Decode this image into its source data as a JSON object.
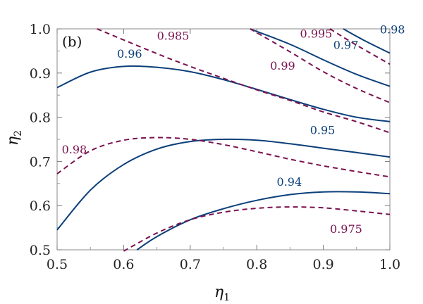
{
  "chart_data": {
    "type": "line",
    "panel_label": "(b)",
    "xlabel": "η",
    "xlabel_sub": "1",
    "ylabel": "η",
    "ylabel_sub": "2",
    "xlim": [
      0.5,
      1.0
    ],
    "ylim": [
      0.5,
      1.0
    ],
    "xticks": [
      "0.5",
      "0.6",
      "0.7",
      "0.8",
      "0.9",
      "1.0"
    ],
    "yticks": [
      "0.5",
      "0.6",
      "0.7",
      "0.8",
      "0.9",
      "1.0"
    ],
    "colors": {
      "solid": "#0b3f7a",
      "dashed": "#7a1150"
    },
    "series": [
      {
        "name": "0.96",
        "style": "solid",
        "x": [
          0.5,
          0.55,
          0.6,
          0.65,
          0.7,
          0.75,
          0.8,
          0.85,
          0.9,
          0.95,
          1.0
        ],
        "y": [
          0.867,
          0.902,
          0.915,
          0.913,
          0.903,
          0.885,
          0.863,
          0.84,
          0.818,
          0.8,
          0.79
        ],
        "label": "0.96",
        "label_at": [
          0.59,
          0.935
        ]
      },
      {
        "name": "0.97",
        "style": "solid",
        "x": [
          0.79,
          0.85,
          0.9,
          0.95,
          1.0
        ],
        "y": [
          1.0,
          0.965,
          0.93,
          0.897,
          0.87
        ],
        "label": "0.97",
        "label_at": [
          0.915,
          0.955
        ]
      },
      {
        "name": "0.98",
        "style": "solid",
        "x": [
          0.93,
          0.96,
          1.0
        ],
        "y": [
          1.0,
          0.975,
          0.945
        ],
        "label": "0.98",
        "label_at": [
          0.985,
          0.99
        ]
      },
      {
        "name": "0.95",
        "style": "solid",
        "x": [
          0.5,
          0.55,
          0.6,
          0.65,
          0.7,
          0.75,
          0.8,
          0.85,
          0.9,
          0.95,
          1.0
        ],
        "y": [
          0.545,
          0.635,
          0.693,
          0.728,
          0.745,
          0.75,
          0.748,
          0.74,
          0.73,
          0.72,
          0.71
        ],
        "label": "0.95",
        "label_at": [
          0.88,
          0.762
        ]
      },
      {
        "name": "0.94",
        "style": "solid",
        "x": [
          0.62,
          0.65,
          0.7,
          0.75,
          0.8,
          0.85,
          0.9,
          0.95,
          1.0
        ],
        "y": [
          0.5,
          0.53,
          0.568,
          0.593,
          0.612,
          0.625,
          0.631,
          0.631,
          0.627
        ],
        "label": "0.94",
        "label_at": [
          0.83,
          0.645
        ]
      },
      {
        "name": "0.985",
        "style": "dashed",
        "x": [
          0.56,
          0.65,
          0.7,
          0.75,
          0.8,
          0.85,
          0.9,
          0.95,
          1.0
        ],
        "y": [
          1.0,
          0.944,
          0.915,
          0.888,
          0.862,
          0.838,
          0.812,
          0.79,
          0.765
        ],
        "label": "0.985",
        "label_at": [
          0.65,
          0.975
        ]
      },
      {
        "name": "0.99",
        "style": "dashed",
        "x": [
          0.79,
          0.85,
          0.9,
          0.95,
          1.0
        ],
        "y": [
          1.0,
          0.948,
          0.903,
          0.865,
          0.833
        ],
        "label": "0.99",
        "label_at": [
          0.82,
          0.908
        ]
      },
      {
        "name": "0.995",
        "style": "dashed",
        "x": [
          0.91,
          0.95,
          1.0
        ],
        "y": [
          1.0,
          0.963,
          0.92
        ],
        "label": "0.995",
        "label_at": [
          0.865,
          0.98
        ]
      },
      {
        "name": "0.98",
        "style": "dashed",
        "x": [
          0.5,
          0.55,
          0.6,
          0.65,
          0.7,
          0.75,
          0.8,
          0.85,
          0.9,
          0.95,
          1.0
        ],
        "y": [
          0.672,
          0.724,
          0.748,
          0.754,
          0.75,
          0.738,
          0.722,
          0.705,
          0.69,
          0.677,
          0.665
        ],
        "label": "0.98",
        "label_at": [
          0.507,
          0.718
        ]
      },
      {
        "name": "0.975",
        "style": "dashed",
        "x": [
          0.6,
          0.65,
          0.7,
          0.75,
          0.8,
          0.85,
          0.9,
          0.95,
          1.0
        ],
        "y": [
          0.497,
          0.538,
          0.568,
          0.585,
          0.594,
          0.597,
          0.595,
          0.588,
          0.58
        ],
        "label": "0.975",
        "label_at": [
          0.91,
          0.538
        ]
      }
    ]
  }
}
